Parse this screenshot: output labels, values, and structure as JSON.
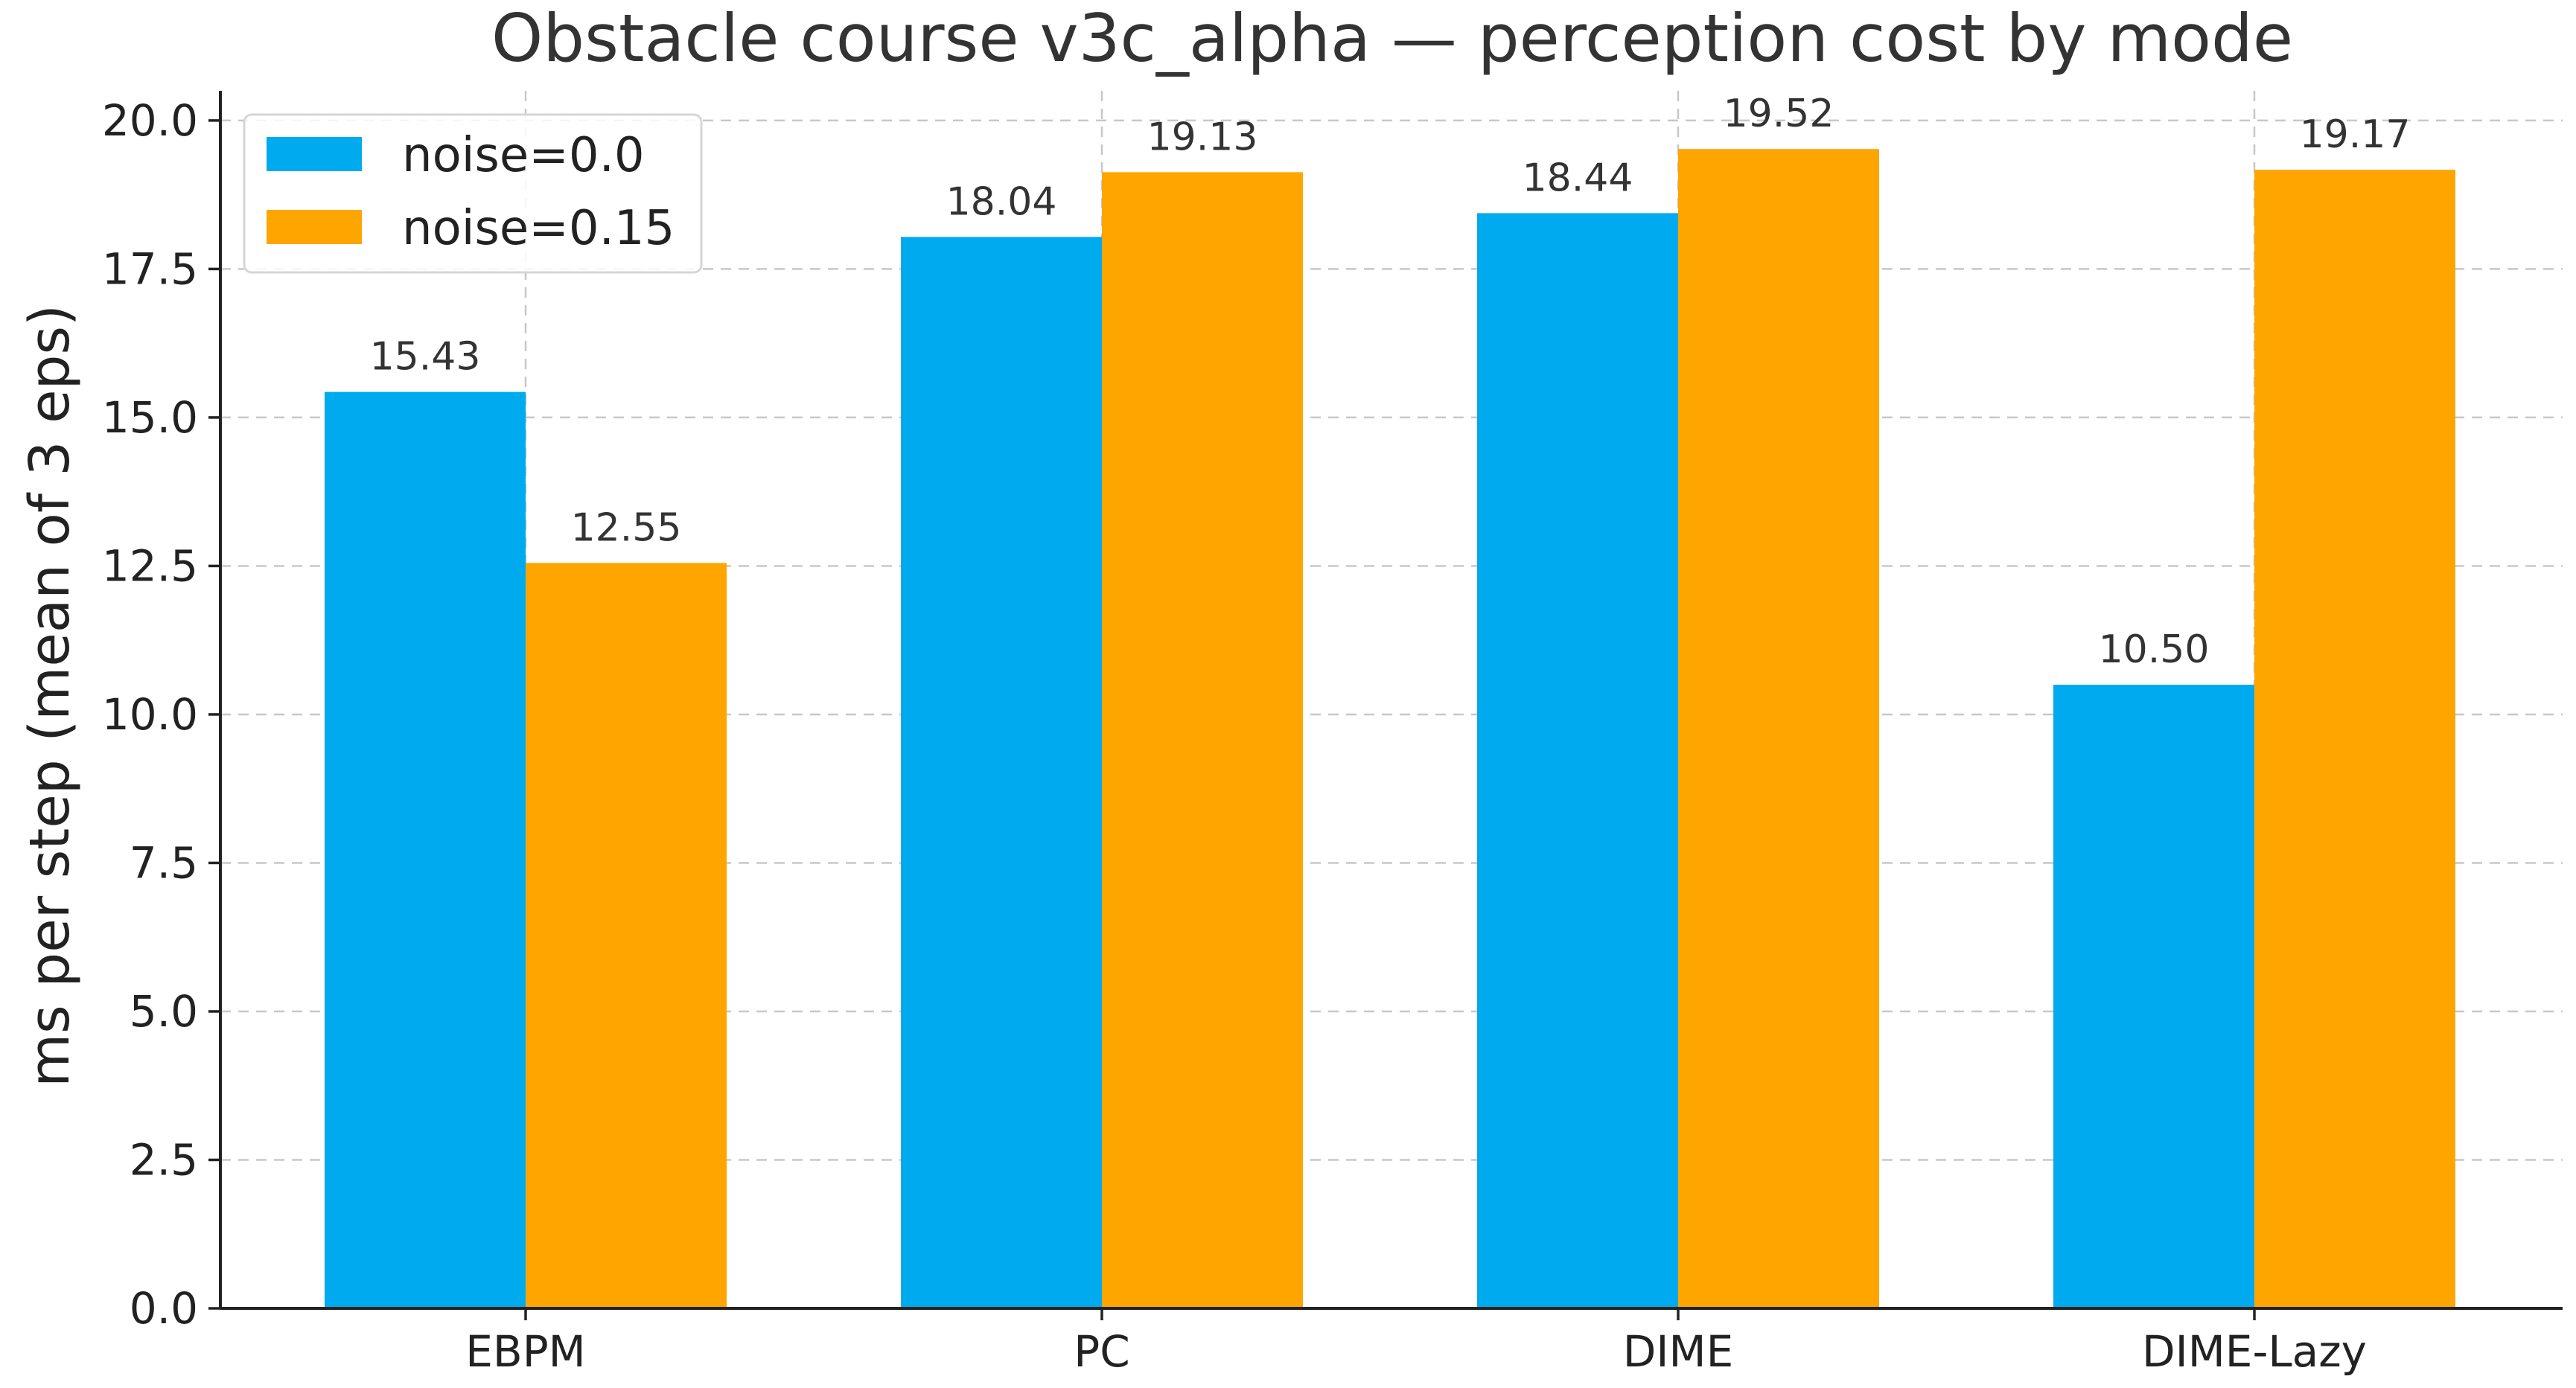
{
  "chart_data": {
    "type": "bar",
    "title": "Obstacle course v3c_alpha — perception cost by mode",
    "xlabel": "",
    "ylabel": "ms per step (mean of 3 eps)",
    "categories": [
      "EBPM",
      "PC",
      "DIME",
      "DIME-Lazy"
    ],
    "series": [
      {
        "name": "noise=0.0",
        "color": "#00AAEE",
        "values": [
          15.43,
          18.04,
          18.44,
          10.5
        ],
        "labels": [
          "15.43",
          "18.04",
          "18.44",
          "10.50"
        ]
      },
      {
        "name": "noise=0.15",
        "color": "#FFA500",
        "values": [
          12.55,
          19.13,
          19.52,
          19.17
        ],
        "labels": [
          "12.55",
          "19.13",
          "19.52",
          "19.17"
        ]
      }
    ],
    "ylim": [
      0,
      20.5
    ],
    "yticks": [
      0.0,
      2.5,
      5.0,
      7.5,
      10.0,
      12.5,
      15.0,
      17.5,
      20.0
    ],
    "ytick_labels": [
      "0.0",
      "2.5",
      "5.0",
      "7.5",
      "10.0",
      "12.5",
      "15.0",
      "17.5",
      "20.0"
    ],
    "grid": true,
    "legend_position": "top-left"
  }
}
